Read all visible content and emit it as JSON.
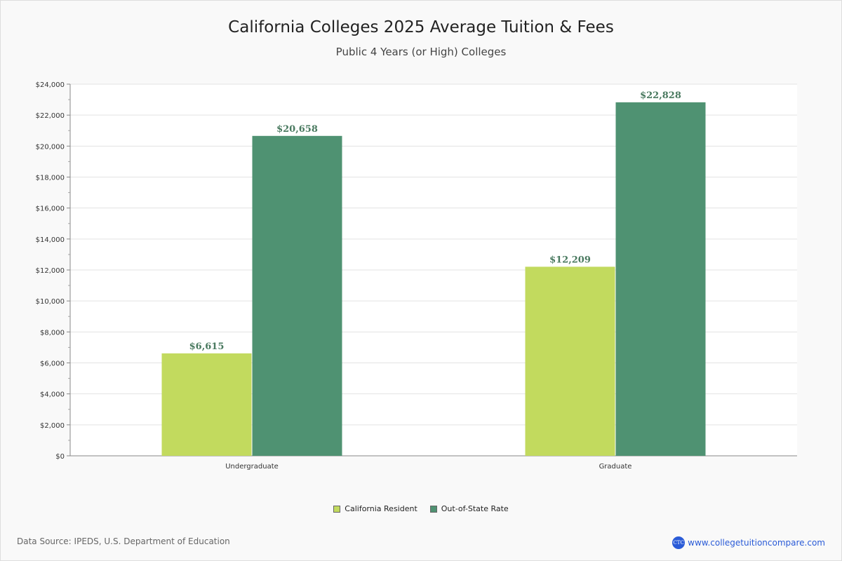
{
  "chart_data": {
    "type": "bar",
    "title": "California Colleges 2025 Average Tuition & Fees",
    "subtitle": "Public 4 Years (or High)  Colleges",
    "categories": [
      "Undergraduate",
      "Graduate"
    ],
    "series": [
      {
        "name": "California Resident",
        "color": "#c2da5e",
        "values": [
          6615,
          12209
        ],
        "labels": [
          "$6,615",
          "$12,209"
        ]
      },
      {
        "name": "Out-of-State Rate",
        "color": "#4f9272",
        "values": [
          20658,
          22828
        ],
        "labels": [
          "$20,658",
          "$22,828"
        ]
      }
    ],
    "ylim": [
      0,
      24000
    ],
    "yticks": [
      0,
      2000,
      4000,
      6000,
      8000,
      10000,
      12000,
      14000,
      16000,
      18000,
      20000,
      22000,
      24000
    ],
    "ytick_labels": [
      "$0",
      "$2,000",
      "$4,000",
      "$6,000",
      "$8,000",
      "$10,000",
      "$12,000",
      "$14,000",
      "$16,000",
      "$18,000",
      "$20,000",
      "$22,000",
      "$24,000"
    ],
    "grid": true,
    "legend": "bottom-center",
    "label_color": "#4a7a60"
  },
  "footer": {
    "source": "Data Source: IPEDS, U.S. Department of Education",
    "site": "www.collegetuitioncompare.com",
    "logo_text": "CTC"
  }
}
